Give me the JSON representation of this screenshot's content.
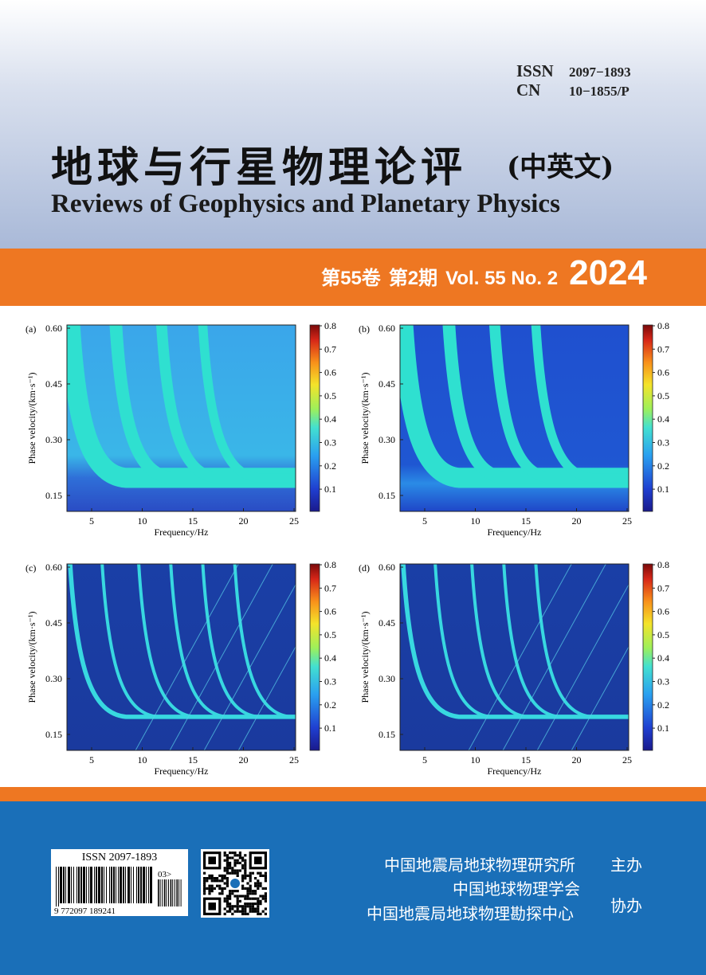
{
  "header": {
    "issn_label": "ISSN",
    "issn_value": "2097−1893",
    "cn_label": "CN",
    "cn_value": "10−1855/P",
    "title_cn": "地球与行星物理论评",
    "title_cn_sub": "(中英文)",
    "title_en": "Reviews of Geophysics and Planetary Physics"
  },
  "issue": {
    "volume_cn": "第55卷",
    "issue_cn": "第2期",
    "volume_en": "Vol. 55 No. 2",
    "year": "2024"
  },
  "figure": {
    "panels": [
      {
        "label": "(a)"
      },
      {
        "label": "(b)"
      },
      {
        "label": "(c)"
      },
      {
        "label": "(d)"
      }
    ],
    "xlabel": "Frequency/Hz",
    "ylabel": "Phase velocity/(km·s⁻¹)",
    "xticks": [
      "5",
      "10",
      "15",
      "20",
      "25"
    ],
    "yticks": [
      "0.60",
      "0.45",
      "0.30",
      "0.15"
    ],
    "cbticks": [
      "0.8",
      "0.7",
      "0.6",
      "0.5",
      "0.4",
      "0.3",
      "0.2",
      "0.1"
    ]
  },
  "barcode": {
    "issn_text": "ISSN 2097-1893",
    "number": "9 772097 189241",
    "addon": "03>"
  },
  "sponsors": {
    "org1": "中国地震局地球物理研究所",
    "org2": "中国地球物理学会",
    "org3": "中国地震局地球物理勘探中心",
    "role1": "主办",
    "role2": "协办"
  },
  "colors": {
    "orange": "#ee7722",
    "blue": "#1a6fb8"
  }
}
